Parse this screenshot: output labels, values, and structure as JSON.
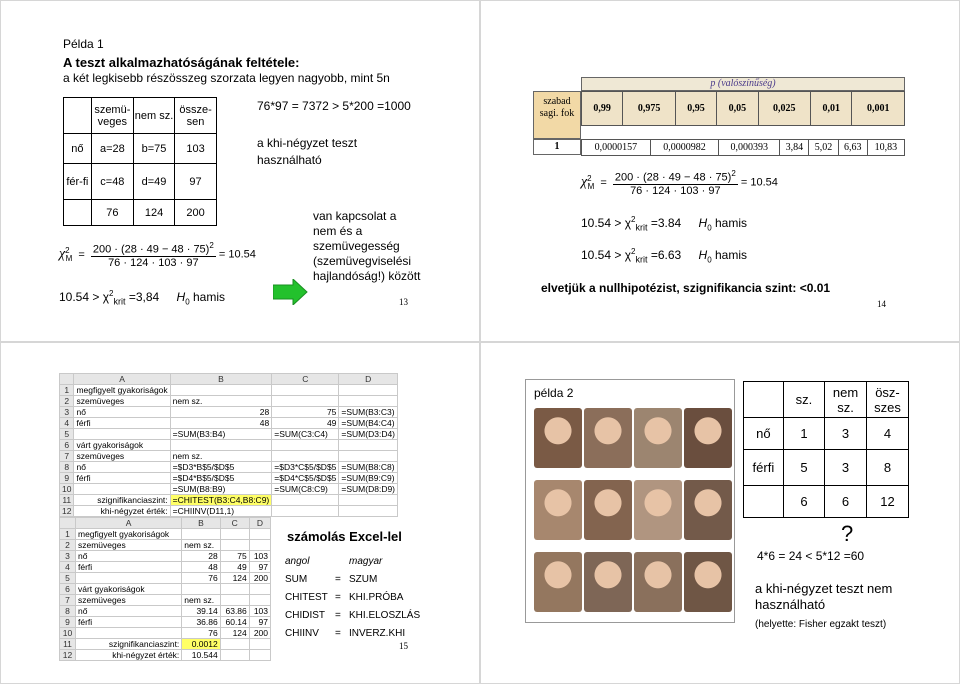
{
  "slide13": {
    "label": "Példa 1",
    "title": "A teszt alkalmazhatóságának feltétele:",
    "subtitle": "a két legkisebb részösszeg szorzata legyen nagyobb, mint 5n",
    "table": {
      "headers": [
        "szemü-veges",
        "nem sz.",
        "össze-sen"
      ],
      "rows": [
        {
          "label": "nő",
          "cells": [
            "a=28",
            "b=75",
            "103"
          ]
        },
        {
          "label": "fér-fi",
          "cells": [
            "c=48",
            "d=49",
            "97"
          ]
        },
        {
          "label": "",
          "cells": [
            "76",
            "124",
            "200"
          ]
        }
      ]
    },
    "formula": {
      "chi": "χ",
      "sub": "M",
      "sup": "2",
      "numerator": "200 · (28 · 49 − 48 · 75)",
      "num_sup": "2",
      "denominator": "76 · 124 · 103 · 97",
      "result": "= 10.54"
    },
    "conclusion": {
      "left": "10.54 > χ",
      "sup": "2",
      "sub": "krit",
      "value": "=3,84",
      "h": "H",
      "h_sub": "0",
      "h_text": "hamis"
    },
    "condition": "76*97 = 7372 > 5*200 =1000",
    "applicable": "a khi-négyzet teszt használható",
    "relation": "van kapcsolat a nem és a szemüvegesség (szemüvegviselési hajlandóság!) között",
    "page": "13"
  },
  "slide14": {
    "ptable": {
      "title": "p (valószínűség)",
      "header_label": "szabad sagi. fok",
      "p_values": [
        "0,99",
        "0,975",
        "0,95",
        "0,05",
        "0,025",
        "0,01",
        "0,001"
      ],
      "df": "1",
      "crit": [
        "0,0000157",
        "0,0000982",
        "0,000393",
        "3,84",
        "5,02",
        "6,63",
        "10,83"
      ]
    },
    "formula": {
      "chi": "χ",
      "sub": "M",
      "sup": "2",
      "numerator": "200 · (28 · 49 − 48 · 75)",
      "num_sup": "2",
      "denominator": "76 · 124 · 103 · 97",
      "result": "= 10.54"
    },
    "line1": {
      "left": "10.54 > χ",
      "sup": "2",
      "sub": "krit",
      "value": "=3.84",
      "h": "H",
      "h_sub": "0",
      "h_text": "hamis"
    },
    "line2": {
      "left": "10.54 > χ",
      "sup": "2",
      "sub": "krit",
      "value": "=6.63",
      "h": "H",
      "h_sub": "0",
      "h_text": "hamis"
    },
    "conclusion": "elvetjük a nullhipotézist, szignifikancia szint: <0.01",
    "page": "14"
  },
  "slide15": {
    "sheet1": [
      [
        "1",
        "megfigyelt gyakoriságok",
        "",
        "",
        ""
      ],
      [
        "2",
        "szemüveges",
        "nem sz.",
        "",
        ""
      ],
      [
        "3",
        "nő",
        "28",
        "75",
        "=SUM(B3:C3)"
      ],
      [
        "4",
        "férfi",
        "48",
        "49",
        "=SUM(B4:C4)"
      ],
      [
        "5",
        "",
        "=SUM(B3:B4)",
        "=SUM(C3:C4)",
        "=SUM(D3:D4)"
      ],
      [
        "6",
        "várt gyakoriságok",
        "",
        "",
        ""
      ],
      [
        "7",
        "szemüveges",
        "nem sz.",
        "",
        ""
      ],
      [
        "8",
        "nő",
        "=$D3*B$5/$D$5",
        "=$D3*C$5/$D$5",
        "=SUM(B8:C8)"
      ],
      [
        "9",
        "férfi",
        "=$D4*B$5/$D$5",
        "=$D4*C$5/$D$5",
        "=SUM(B9:C9)"
      ],
      [
        "10",
        "",
        "=SUM(B8:B9)",
        "=SUM(C8:C9)",
        "=SUM(D8:D9)"
      ],
      [
        "11",
        "szignifikanciaszint:",
        "=CHITEST(B3:C4,B8:C9)",
        "",
        ""
      ],
      [
        "12",
        "khi-négyzet érték:",
        "=CHIINV(D11,1)",
        "",
        ""
      ]
    ],
    "sheet2": [
      [
        "1",
        "megfigyelt gyakoriságok",
        "",
        "",
        ""
      ],
      [
        "2",
        "szemüveges",
        "nem sz.",
        "",
        ""
      ],
      [
        "3",
        "nő",
        "28",
        "75",
        "103"
      ],
      [
        "4",
        "férfi",
        "48",
        "49",
        "97"
      ],
      [
        "5",
        "",
        "76",
        "124",
        "200"
      ],
      [
        "6",
        "várt gyakoriságok",
        "",
        "",
        ""
      ],
      [
        "7",
        "szemüveges",
        "nem sz.",
        "",
        ""
      ],
      [
        "8",
        "nő",
        "39.14",
        "63.86",
        "103"
      ],
      [
        "9",
        "férfi",
        "36.86",
        "60.14",
        "97"
      ],
      [
        "10",
        "",
        "76",
        "124",
        "200"
      ],
      [
        "11",
        "szignifikanciaszint:",
        "0.0012",
        "",
        ""
      ],
      [
        "12",
        "khi-négyzet érték:",
        "10.544",
        "",
        ""
      ]
    ],
    "excel_title": "számolás Excel-lel",
    "col_headers": [
      "angol",
      "magyar"
    ],
    "functions": [
      {
        "en": "SUM",
        "eq": "=",
        "hu": "SZUM"
      },
      {
        "en": "CHITEST",
        "eq": "=",
        "hu": "KHI.PRÓBA"
      },
      {
        "en": "CHIDIST",
        "eq": "=",
        "hu": "KHI.ELOSZLÁS"
      },
      {
        "en": "CHIINV",
        "eq": "=",
        "hu": "INVERZ.KHI"
      }
    ],
    "page": "15"
  },
  "slide16": {
    "label": "példa 2",
    "table": {
      "headers": [
        "sz.",
        "nem sz.",
        "ösz-szes"
      ],
      "rows": [
        {
          "label": "nő",
          "cells": [
            "1",
            "3",
            "4"
          ]
        },
        {
          "label": "férfi",
          "cells": [
            "5",
            "3",
            "8"
          ]
        },
        {
          "label": "",
          "cells": [
            "6",
            "6",
            "12"
          ]
        }
      ]
    },
    "question_mark": "?",
    "inequality": "4*6 = 24 < 5*12 =60",
    "not_applicable": "a khi-négyzet teszt nem használható",
    "fisher": "(helyette: Fisher egzakt teszt)",
    "photo_colors": [
      "#7a5a45",
      "#8b6e5a",
      "#9c8570",
      "#6a4e3e",
      "#a7876e",
      "#83644f",
      "#b09580",
      "#735a4a",
      "#94775f",
      "#7e6656",
      "#8a705c",
      "#6f5645"
    ]
  }
}
